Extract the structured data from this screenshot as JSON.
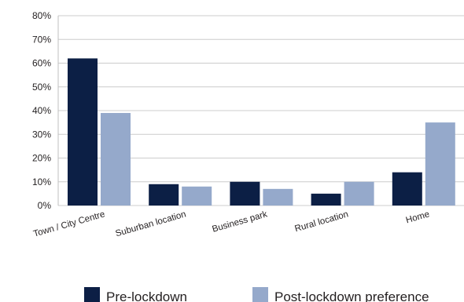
{
  "chart_data": {
    "type": "bar",
    "categories": [
      "Town / City Centre",
      "Suburban location",
      "Business  park",
      "Rural location",
      "Home"
    ],
    "series": [
      {
        "name": "Pre-lockdown",
        "color": "#0c1f45",
        "values": [
          62,
          9,
          10,
          5,
          14
        ]
      },
      {
        "name": "Post-lockdown preference",
        "color": "#95a9cb",
        "values": [
          39,
          8,
          7,
          10,
          35
        ]
      }
    ],
    "ylim": [
      0,
      80
    ],
    "yticks": [
      0,
      10,
      20,
      30,
      40,
      50,
      60,
      70,
      80
    ],
    "ytick_labels": [
      "0%",
      "10%",
      "20%",
      "30%",
      "40%",
      "50%",
      "60%",
      "70%",
      "80%"
    ],
    "grid": true,
    "grid_color": "#cccccc",
    "legend_position": "bottom",
    "title": "",
    "xlabel": "",
    "ylabel": ""
  }
}
